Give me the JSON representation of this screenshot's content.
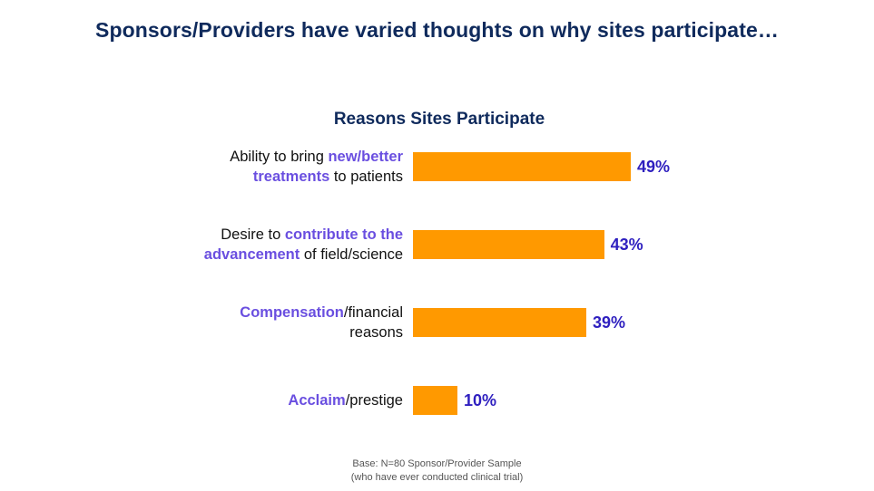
{
  "title": "Sponsors/Providers have varied thoughts on why sites participate…",
  "chart_data": {
    "type": "bar",
    "orientation": "horizontal",
    "title": "Reasons Sites Participate",
    "categories": [
      "Ability to bring new/better treatments to patients",
      "Desire to contribute to the advancement of field/science",
      "Compensation/financial reasons",
      "Acclaim/prestige"
    ],
    "values": [
      49,
      43,
      39,
      10
    ],
    "value_labels": [
      "49%",
      "43%",
      "39%",
      "10%"
    ],
    "xlim": [
      0,
      100
    ],
    "grid": false,
    "legend": "none",
    "bar_color": "#ff9900",
    "value_color": "#2e1fbf"
  },
  "labels": [
    {
      "lines": [
        [
          {
            "t": "Ability to bring ",
            "h": false
          },
          {
            "t": "new/better",
            "h": true
          }
        ],
        [
          {
            "t": "treatments",
            "h": true
          },
          {
            "t": " to patients",
            "h": false
          }
        ]
      ]
    },
    {
      "lines": [
        [
          {
            "t": "Desire to ",
            "h": false
          },
          {
            "t": "contribute to the",
            "h": true
          }
        ],
        [
          {
            "t": "advancement",
            "h": true
          },
          {
            "t": " of field/science",
            "h": false
          }
        ]
      ]
    },
    {
      "lines": [
        [
          {
            "t": "Compensation",
            "h": true
          },
          {
            "t": "/financial",
            "h": false
          }
        ],
        [
          {
            "t": "reasons",
            "h": false
          }
        ]
      ]
    },
    {
      "lines": [
        [
          {
            "t": "Acclaim",
            "h": true
          },
          {
            "t": "/prestige",
            "h": false
          }
        ]
      ]
    }
  ],
  "footnote": {
    "line1": "Base: N=80 Sponsor/Provider Sample",
    "line2": "(who have ever conducted clinical trial)"
  }
}
